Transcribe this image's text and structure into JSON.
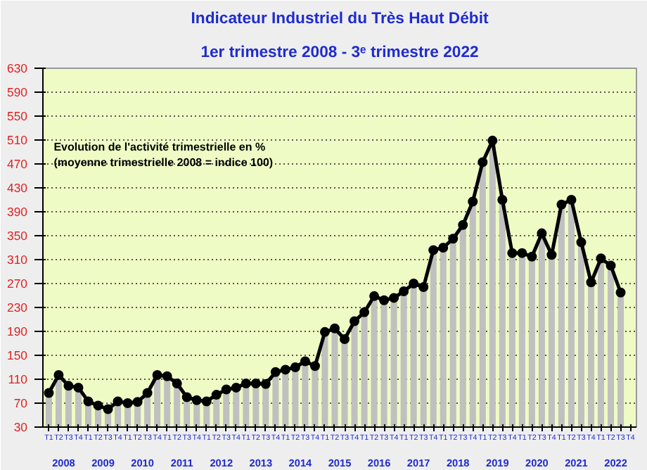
{
  "chart_data": {
    "type": "bar",
    "title": "Indicateur Industriel du Très Haut Débit",
    "subtitle": "1er trimestre 2008 - 3ᵉ trimestre 2022",
    "categories": [
      "T1",
      "T2",
      "T3",
      "T4",
      "T1",
      "T2",
      "T3",
      "T4",
      "T1",
      "T2",
      "T3",
      "T4",
      "T1",
      "T2",
      "T3",
      "T4",
      "T1",
      "T2",
      "T3",
      "T4",
      "T1",
      "T2",
      "T3",
      "T4",
      "T1",
      "T2",
      "T3",
      "T4",
      "T1",
      "T2",
      "T3",
      "T4",
      "T1",
      "T2",
      "T3",
      "T4",
      "T1",
      "T2",
      "T3",
      "T4",
      "T1",
      "T2",
      "T3",
      "T4",
      "T1",
      "T2",
      "T3",
      "T4",
      "T1",
      "T2",
      "T3",
      "T4",
      "T1",
      "T2",
      "T3",
      "T4",
      "T1",
      "T2",
      "T3",
      "T4"
    ],
    "series": [
      {
        "color": "#c0c0c0",
        "values": [
          87,
          117,
          99,
          96,
          73,
          66,
          60,
          73,
          70,
          72,
          87,
          117,
          115,
          103,
          80,
          75,
          73,
          84,
          93,
          96,
          103,
          103,
          102,
          122,
          126,
          130,
          140,
          132,
          189,
          195,
          177,
          207,
          222,
          249,
          242,
          246,
          257,
          270,
          264,
          326,
          330,
          345,
          368,
          407,
          473,
          509,
          410,
          321,
          321,
          315,
          354,
          318,
          402,
          410,
          339,
          272,
          312,
          300,
          255,
          null
        ]
      },
      {
        "type": "line",
        "color": "#000000",
        "marker": "circle",
        "values": [
          87,
          117,
          99,
          96,
          73,
          66,
          60,
          73,
          70,
          72,
          87,
          117,
          115,
          103,
          80,
          75,
          73,
          84,
          93,
          96,
          103,
          103,
          102,
          122,
          126,
          130,
          140,
          132,
          189,
          195,
          177,
          207,
          222,
          249,
          242,
          246,
          257,
          270,
          264,
          326,
          330,
          345,
          368,
          407,
          473,
          509,
          410,
          321,
          321,
          315,
          354,
          318,
          402,
          410,
          339,
          272,
          312,
          300,
          255,
          null
        ]
      }
    ],
    "ylim": [
      30,
      630
    ],
    "yticks": [
      30,
      70,
      110,
      150,
      190,
      230,
      270,
      310,
      350,
      390,
      430,
      470,
      510,
      550,
      590,
      630
    ],
    "grid": "y",
    "annotations": [
      "Evolution de l'activité trimestrielle en %\n(moyenne trimestrielle 2008 = indice 100)",
      "2008",
      "2009",
      "2010",
      "2011",
      "2012",
      "2013",
      "2014",
      "2015",
      "2016",
      "2017",
      "2018",
      "2019",
      "2020",
      "2021",
      "2022"
    ]
  }
}
